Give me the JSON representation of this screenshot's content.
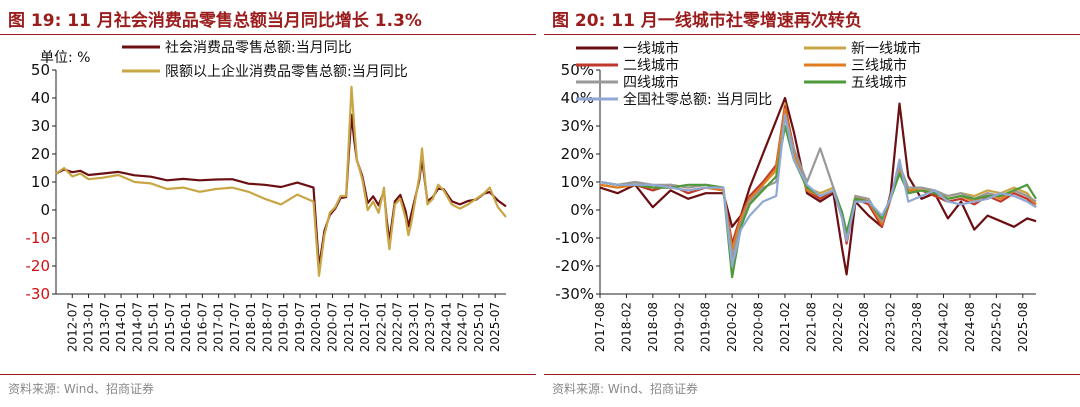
{
  "figure19": {
    "title": "图 19:  11 月社会消费品零售总额当月同比增长 1.3%",
    "source": "资料来源: Wind、招商证券"
  },
  "figure20": {
    "title": "图 20:  11 月一线城市社零增速再次转负",
    "source": "资料来源: Wind、招商证券"
  },
  "chart_data": [
    {
      "type": "line",
      "unit_label": "单位: %",
      "ylim": [
        -30,
        50
      ],
      "yticks": [
        50,
        40,
        30,
        20,
        10,
        0,
        -10,
        -20,
        -30
      ],
      "ytick_labels": [
        "50",
        "40",
        "30",
        "20",
        "10",
        "0",
        "-10",
        "-20",
        "-30"
      ],
      "xlim": [
        "2012-01",
        "2025-11"
      ],
      "xticks": [
        "2012-07",
        "2013-01",
        "2013-07",
        "2014-01",
        "2014-07",
        "2015-01",
        "2015-07",
        "2016-01",
        "2016-07",
        "2017-01",
        "2017-07",
        "2018-01",
        "2018-07",
        "2019-01",
        "2019-07",
        "2020-01",
        "2020-07",
        "2021-01",
        "2021-07",
        "2022-01",
        "2022-07",
        "2023-01",
        "2023-07",
        "2024-01",
        "2024-07",
        "2025-01",
        "2025-07"
      ],
      "legend_position": "top",
      "series": [
        {
          "name": "社会消费品零售总额:当月同比",
          "color": "#6b0f12",
          "x": [
            "2012-01",
            "2012-04",
            "2012-07",
            "2012-10",
            "2013-01",
            "2013-06",
            "2013-12",
            "2014-06",
            "2014-12",
            "2015-06",
            "2015-12",
            "2016-06",
            "2016-12",
            "2017-06",
            "2017-12",
            "2018-06",
            "2018-12",
            "2019-06",
            "2019-12",
            "2020-02",
            "2020-04",
            "2020-06",
            "2020-08",
            "2020-10",
            "2020-12",
            "2021-01",
            "2021-02",
            "2021-03",
            "2021-04",
            "2021-06",
            "2021-08",
            "2021-10",
            "2021-12",
            "2022-02",
            "2022-03",
            "2022-04",
            "2022-06",
            "2022-08",
            "2022-10",
            "2022-11",
            "2022-12",
            "2023-03",
            "2023-04",
            "2023-06",
            "2023-08",
            "2023-10",
            "2023-12",
            "2024-03",
            "2024-06",
            "2024-09",
            "2024-12",
            "2025-03",
            "2025-05",
            "2025-08",
            "2025-11"
          ],
          "y": [
            13,
            14.5,
            13.5,
            14,
            12.5,
            13,
            13.6,
            12.4,
            11.9,
            10.6,
            11.1,
            10.6,
            10.9,
            11,
            9.4,
            9,
            8.2,
            9.8,
            8,
            -20.5,
            -7.5,
            -1.8,
            0.5,
            4.3,
            4.6,
            20,
            34,
            25,
            17.7,
            12.1,
            2.5,
            4.9,
            1.7,
            6.7,
            -3.5,
            -11.1,
            3.1,
            5.4,
            -0.5,
            -5.9,
            -1.8,
            10.6,
            18.4,
            3.1,
            4.6,
            7.6,
            7.4,
            3.1,
            2,
            3.2,
            3.7,
            5.9,
            6.4,
            3.4,
            1.3
          ]
        },
        {
          "name": "限额以上企业消费品零售总额:当月同比",
          "color": "#c8a646",
          "x": [
            "2012-01",
            "2012-04",
            "2012-07",
            "2012-10",
            "2013-01",
            "2013-06",
            "2013-12",
            "2014-06",
            "2014-12",
            "2015-06",
            "2015-12",
            "2016-06",
            "2016-12",
            "2017-06",
            "2017-12",
            "2018-06",
            "2018-12",
            "2019-06",
            "2019-12",
            "2020-02",
            "2020-04",
            "2020-06",
            "2020-08",
            "2020-10",
            "2020-12",
            "2021-01",
            "2021-02",
            "2021-03",
            "2021-04",
            "2021-06",
            "2021-08",
            "2021-10",
            "2021-12",
            "2022-02",
            "2022-03",
            "2022-04",
            "2022-06",
            "2022-08",
            "2022-10",
            "2022-11",
            "2022-12",
            "2023-03",
            "2023-04",
            "2023-06",
            "2023-08",
            "2023-10",
            "2023-12",
            "2024-03",
            "2024-06",
            "2024-09",
            "2024-12",
            "2025-03",
            "2025-05",
            "2025-08",
            "2025-11"
          ],
          "y": [
            13,
            15,
            12,
            13,
            11,
            11.5,
            12.5,
            10,
            9.5,
            7.5,
            8,
            6.5,
            7.5,
            8,
            6.5,
            4,
            2,
            5.5,
            3,
            -23.5,
            -9,
            -1,
            1,
            5,
            5,
            24,
            44,
            30,
            18,
            11,
            0,
            3,
            -1,
            8,
            -6,
            -14,
            2,
            4,
            -3,
            -9,
            -5,
            12,
            22,
            2,
            4,
            9,
            7,
            2,
            0.5,
            2,
            4,
            6,
            8,
            1,
            -2.5
          ]
        }
      ]
    },
    {
      "type": "line",
      "yticks": [
        50,
        40,
        30,
        20,
        10,
        0,
        -10,
        -20,
        -30
      ],
      "ytick_labels": [
        "50%",
        "40%",
        "30%",
        "20%",
        "10%",
        "0%",
        "-10%",
        "-20%",
        "-30%"
      ],
      "ylim": [
        -30,
        50
      ],
      "xlim": [
        "2017-08",
        "2025-11"
      ],
      "xticks": [
        "2017-08",
        "2018-02",
        "2018-08",
        "2019-02",
        "2019-08",
        "2020-02",
        "2020-08",
        "2021-02",
        "2021-08",
        "2022-02",
        "2022-08",
        "2023-02",
        "2023-08",
        "2024-02",
        "2024-08",
        "2025-02",
        "2025-08"
      ],
      "legend_position": "top",
      "series": [
        {
          "name": "一线城市",
          "color": "#6b0f12",
          "x": [
            "2017-08",
            "2017-12",
            "2018-04",
            "2018-08",
            "2018-12",
            "2019-04",
            "2019-08",
            "2019-12",
            "2020-02",
            "2020-04",
            "2020-06",
            "2020-09",
            "2020-12",
            "2021-02",
            "2021-04",
            "2021-07",
            "2021-10",
            "2022-01",
            "2022-03",
            "2022-04",
            "2022-06",
            "2022-09",
            "2022-12",
            "2023-02",
            "2023-04",
            "2023-06",
            "2023-09",
            "2023-12",
            "2024-03",
            "2024-06",
            "2024-09",
            "2024-12",
            "2025-03",
            "2025-06",
            "2025-09",
            "2025-11"
          ],
          "y": [
            8,
            6,
            9,
            1,
            7,
            4,
            6,
            6,
            -6,
            -2,
            8,
            20,
            32,
            40,
            28,
            6,
            3,
            6,
            -14,
            -23,
            3,
            -2,
            -6,
            6,
            38,
            12,
            4,
            6,
            -3,
            3,
            -7,
            -2,
            -4,
            -6,
            -3,
            -4
          ]
        },
        {
          "name": "新一线城市",
          "color": "#c8a646",
          "x": [
            "2017-08",
            "2017-12",
            "2018-04",
            "2018-08",
            "2018-12",
            "2019-04",
            "2019-08",
            "2019-12",
            "2020-02",
            "2020-04",
            "2020-06",
            "2020-09",
            "2020-12",
            "2021-02",
            "2021-04",
            "2021-07",
            "2021-10",
            "2022-01",
            "2022-03",
            "2022-04",
            "2022-06",
            "2022-09",
            "2022-12",
            "2023-02",
            "2023-04",
            "2023-06",
            "2023-09",
            "2023-12",
            "2024-03",
            "2024-06",
            "2024-09",
            "2024-12",
            "2025-03",
            "2025-06",
            "2025-09",
            "2025-11"
          ],
          "y": [
            10,
            9,
            10,
            8,
            9,
            8,
            9,
            8,
            -16,
            -4,
            3,
            9,
            14,
            38,
            20,
            8,
            6,
            8,
            -2,
            -10,
            5,
            3,
            -5,
            5,
            14,
            7,
            8,
            6,
            5,
            6,
            5,
            7,
            6,
            8,
            6,
            2
          ]
        },
        {
          "name": "二线城市",
          "color": "#c0392b",
          "x": [
            "2017-08",
            "2017-12",
            "2018-04",
            "2018-08",
            "2018-12",
            "2019-04",
            "2019-08",
            "2019-12",
            "2020-02",
            "2020-04",
            "2020-06",
            "2020-09",
            "2020-12",
            "2021-02",
            "2021-04",
            "2021-07",
            "2021-10",
            "2022-01",
            "2022-03",
            "2022-04",
            "2022-06",
            "2022-09",
            "2022-12",
            "2023-02",
            "2023-04",
            "2023-06",
            "2023-09",
            "2023-12",
            "2024-03",
            "2024-06",
            "2024-09",
            "2024-12",
            "2025-03",
            "2025-06",
            "2025-09",
            "2025-11"
          ],
          "y": [
            9,
            8,
            9,
            7,
            9,
            6,
            8,
            7,
            -12,
            -2,
            5,
            10,
            16,
            37,
            22,
            7,
            4,
            7,
            -3,
            -12,
            4,
            2,
            -6,
            4,
            16,
            6,
            7,
            5,
            3,
            4,
            2,
            5,
            3,
            6,
            4,
            1
          ]
        },
        {
          "name": "三线城市",
          "color": "#e07b1f",
          "x": [
            "2017-08",
            "2017-12",
            "2018-04",
            "2018-08",
            "2018-12",
            "2019-04",
            "2019-08",
            "2019-12",
            "2020-02",
            "2020-04",
            "2020-06",
            "2020-09",
            "2020-12",
            "2021-02",
            "2021-04",
            "2021-07",
            "2021-10",
            "2022-01",
            "2022-03",
            "2022-04",
            "2022-06",
            "2022-09",
            "2022-12",
            "2023-02",
            "2023-04",
            "2023-06",
            "2023-09",
            "2023-12",
            "2024-03",
            "2024-06",
            "2024-09",
            "2024-12",
            "2025-03",
            "2025-06",
            "2025-09",
            "2025-11"
          ],
          "y": [
            9,
            8,
            9,
            8,
            8,
            7,
            8,
            7,
            -14,
            -3,
            4,
            9,
            15,
            36,
            21,
            7,
            5,
            7,
            -2,
            -11,
            5,
            3,
            -5,
            5,
            15,
            7,
            7,
            6,
            4,
            5,
            3,
            6,
            4,
            7,
            5,
            2
          ]
        },
        {
          "name": "四线城市",
          "color": "#999999",
          "x": [
            "2017-08",
            "2017-12",
            "2018-04",
            "2018-08",
            "2018-12",
            "2019-04",
            "2019-08",
            "2019-12",
            "2020-02",
            "2020-04",
            "2020-06",
            "2020-09",
            "2020-12",
            "2021-02",
            "2021-04",
            "2021-07",
            "2021-10",
            "2022-01",
            "2022-03",
            "2022-04",
            "2022-06",
            "2022-09",
            "2022-12",
            "2023-02",
            "2023-04",
            "2023-06",
            "2023-09",
            "2023-12",
            "2024-03",
            "2024-06",
            "2024-09",
            "2024-12",
            "2025-03",
            "2025-06",
            "2025-09",
            "2025-11"
          ],
          "y": [
            10,
            9,
            10,
            9,
            9,
            8,
            9,
            8,
            -17,
            -5,
            3,
            8,
            10,
            33,
            22,
            10,
            22,
            8,
            -1,
            -9,
            5,
            4,
            -4,
            5,
            16,
            8,
            8,
            7,
            5,
            6,
            4,
            6,
            5,
            7,
            5,
            3
          ]
        },
        {
          "name": "五线城市",
          "color": "#4e9a3a",
          "x": [
            "2017-08",
            "2017-12",
            "2018-04",
            "2018-08",
            "2018-12",
            "2019-04",
            "2019-08",
            "2019-12",
            "2020-02",
            "2020-04",
            "2020-06",
            "2020-09",
            "2020-12",
            "2021-02",
            "2021-04",
            "2021-07",
            "2021-10",
            "2022-01",
            "2022-03",
            "2022-04",
            "2022-06",
            "2022-09",
            "2022-12",
            "2023-02",
            "2023-04",
            "2023-06",
            "2023-09",
            "2023-12",
            "2024-03",
            "2024-06",
            "2024-09",
            "2024-12",
            "2025-03",
            "2025-06",
            "2025-09",
            "2025-11"
          ],
          "y": [
            10,
            9,
            9,
            8,
            8,
            9,
            9,
            8,
            -24,
            -6,
            2,
            7,
            12,
            30,
            18,
            8,
            5,
            7,
            -1,
            -8,
            4,
            3,
            -3,
            4,
            13,
            6,
            7,
            6,
            4,
            5,
            4,
            5,
            5,
            7,
            9,
            4
          ]
        },
        {
          "name": "全国社零总额: 当月同比",
          "color": "#8fa8d4",
          "x": [
            "2017-08",
            "2017-12",
            "2018-04",
            "2018-08",
            "2018-12",
            "2019-04",
            "2019-08",
            "2019-12",
            "2020-02",
            "2020-04",
            "2020-06",
            "2020-09",
            "2020-12",
            "2021-02",
            "2021-04",
            "2021-07",
            "2021-10",
            "2022-01",
            "2022-03",
            "2022-04",
            "2022-06",
            "2022-09",
            "2022-12",
            "2023-02",
            "2023-04",
            "2023-06",
            "2023-09",
            "2023-12",
            "2024-03",
            "2024-06",
            "2024-09",
            "2024-12",
            "2025-03",
            "2025-06",
            "2025-09",
            "2025-11"
          ],
          "y": [
            10,
            9,
            9,
            9,
            8,
            7,
            8,
            8,
            -20,
            -7,
            -2,
            3,
            5,
            34,
            18,
            9,
            5,
            7,
            -3,
            -11,
            3,
            3,
            -2,
            4,
            18,
            3,
            5,
            7,
            3,
            2,
            3,
            4,
            6,
            5,
            3,
            1
          ]
        }
      ]
    }
  ]
}
